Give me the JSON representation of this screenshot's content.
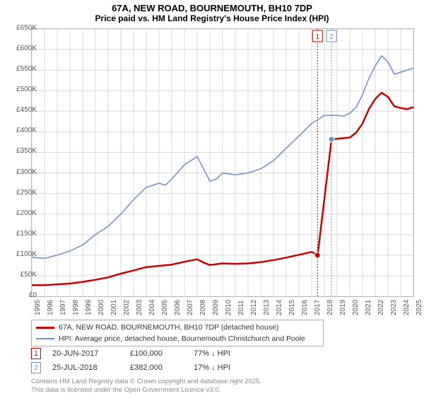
{
  "title_line1": "67A, NEW ROAD, BOURNEMOUTH, BH10 7DP",
  "title_line2": "Price paid vs. HM Land Registry's House Price Index (HPI)",
  "chart": {
    "type": "line",
    "x_start_year": 1995,
    "x_end_year": 2025,
    "ylim": [
      0,
      650000
    ],
    "ytick_step": 50000,
    "yticks": [
      "£0",
      "£50K",
      "£100K",
      "£150K",
      "£200K",
      "£250K",
      "£300K",
      "£350K",
      "£400K",
      "£450K",
      "£500K",
      "£550K",
      "£600K",
      "£650K"
    ],
    "xticks": [
      "1995",
      "1996",
      "1997",
      "1998",
      "1999",
      "2000",
      "2001",
      "2002",
      "2003",
      "2004",
      "2005",
      "2006",
      "2007",
      "2008",
      "2009",
      "2010",
      "2011",
      "2012",
      "2013",
      "2014",
      "2015",
      "2016",
      "2017",
      "2018",
      "2019",
      "2020",
      "2021",
      "2022",
      "2023",
      "2024",
      "2025"
    ],
    "grid_color": "#d9d9d9",
    "background_color": "#ffffff",
    "series": {
      "hpi": {
        "label": "HPI: Average price, detached house, Bournemouth Christchurch and Poole",
        "color": "#6d8fc7",
        "line_width": 1.5,
        "points": [
          [
            1995.0,
            95000
          ],
          [
            1996.0,
            92000
          ],
          [
            1997.0,
            100000
          ],
          [
            1998.0,
            110000
          ],
          [
            1999.0,
            125000
          ],
          [
            2000.0,
            150000
          ],
          [
            2001.0,
            170000
          ],
          [
            2002.0,
            200000
          ],
          [
            2003.0,
            235000
          ],
          [
            2004.0,
            265000
          ],
          [
            2005.0,
            275000
          ],
          [
            2005.5,
            270000
          ],
          [
            2006.0,
            285000
          ],
          [
            2007.0,
            320000
          ],
          [
            2008.0,
            340000
          ],
          [
            2008.5,
            310000
          ],
          [
            2009.0,
            280000
          ],
          [
            2009.5,
            285000
          ],
          [
            2010.0,
            300000
          ],
          [
            2011.0,
            295000
          ],
          [
            2012.0,
            300000
          ],
          [
            2013.0,
            310000
          ],
          [
            2014.0,
            330000
          ],
          [
            2015.0,
            360000
          ],
          [
            2016.0,
            390000
          ],
          [
            2017.0,
            420000
          ],
          [
            2018.0,
            440000
          ],
          [
            2019.0,
            440000
          ],
          [
            2019.5,
            438000
          ],
          [
            2020.0,
            445000
          ],
          [
            2020.5,
            460000
          ],
          [
            2021.0,
            490000
          ],
          [
            2021.5,
            530000
          ],
          [
            2022.0,
            560000
          ],
          [
            2022.5,
            585000
          ],
          [
            2023.0,
            570000
          ],
          [
            2023.5,
            540000
          ],
          [
            2024.0,
            545000
          ],
          [
            2024.5,
            550000
          ],
          [
            2025.0,
            555000
          ]
        ]
      },
      "price_paid": {
        "label": "67A, NEW ROAD, BOURNEMOUTH, BH10 7DP (detached house)",
        "color": "#cc0000",
        "line_width": 2.5,
        "points": [
          [
            1995.0,
            27000
          ],
          [
            1996.0,
            27000
          ],
          [
            1997.0,
            29000
          ],
          [
            1998.0,
            31000
          ],
          [
            1999.0,
            35000
          ],
          [
            2000.0,
            40000
          ],
          [
            2001.0,
            46000
          ],
          [
            2002.0,
            55000
          ],
          [
            2003.0,
            63000
          ],
          [
            2004.0,
            71000
          ],
          [
            2005.0,
            74000
          ],
          [
            2006.0,
            77000
          ],
          [
            2007.0,
            84000
          ],
          [
            2008.0,
            90000
          ],
          [
            2008.5,
            82000
          ],
          [
            2009.0,
            76000
          ],
          [
            2010.0,
            80000
          ],
          [
            2011.0,
            79000
          ],
          [
            2012.0,
            80000
          ],
          [
            2013.0,
            83000
          ],
          [
            2014.0,
            88000
          ],
          [
            2015.0,
            94000
          ],
          [
            2016.0,
            101000
          ],
          [
            2017.0,
            108000
          ],
          [
            2017.46,
            100000
          ],
          [
            2017.47,
            100000
          ],
          [
            2018.56,
            382000
          ],
          [
            2019.0,
            383000
          ],
          [
            2020.0,
            386000
          ],
          [
            2020.5,
            398000
          ],
          [
            2021.0,
            420000
          ],
          [
            2021.5,
            455000
          ],
          [
            2022.0,
            480000
          ],
          [
            2022.5,
            495000
          ],
          [
            2023.0,
            485000
          ],
          [
            2023.5,
            462000
          ],
          [
            2024.0,
            458000
          ],
          [
            2024.5,
            455000
          ],
          [
            2025.0,
            460000
          ]
        ],
        "markers": [
          {
            "id": 1,
            "year": 2017.46,
            "price": 100000,
            "color": "#cc0000"
          },
          {
            "id": 2,
            "year": 2018.56,
            "price": 382000,
            "color": "#6d8fc7"
          }
        ]
      }
    }
  },
  "markers_table": [
    {
      "id": "1",
      "color": "#cc0000",
      "date": "20-JUN-2017",
      "price": "£100,000",
      "delta": "77% ↓ HPI"
    },
    {
      "id": "2",
      "color": "#6d8fc7",
      "date": "25-JUL-2018",
      "price": "£382,000",
      "delta": "17% ↓ HPI"
    }
  ],
  "footer1": "Contains HM Land Registry data © Crown copyright and database right 2025.",
  "footer2": "This data is licensed under the Open Government Licence v3.0."
}
